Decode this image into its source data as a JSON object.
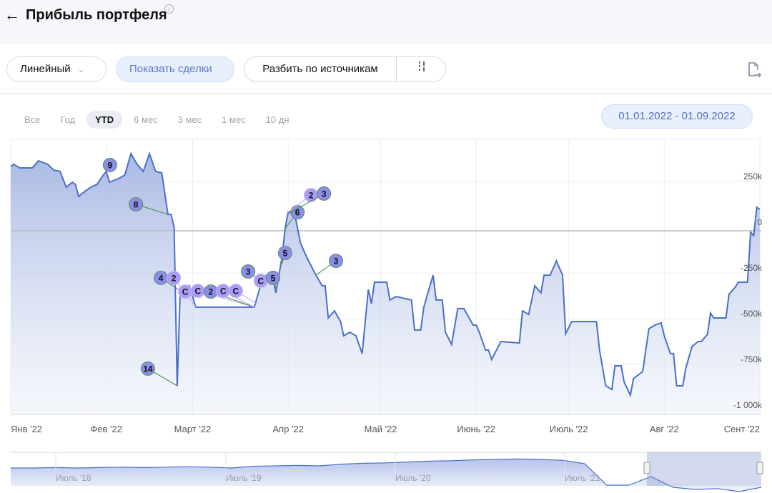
{
  "header": {
    "title": "Прибыль портфеля",
    "back_icon": "arrow-left-icon",
    "info_icon": "info-icon",
    "info_glyph": "i"
  },
  "toolbar": {
    "chart_type": "Линейный",
    "show_trades": "Показать сделки",
    "split_by_sources": "Разбить по источникам",
    "settings_glyph": "¦!"
  },
  "ranges": [
    {
      "label": "Все"
    },
    {
      "label": "Год"
    },
    {
      "label": "YTD",
      "selected": true
    },
    {
      "label": "6 мес"
    },
    {
      "label": "3 мес"
    },
    {
      "label": "1 мес"
    },
    {
      "label": "10 дн"
    }
  ],
  "date_range": "01.01.2022 - 01.09.2022",
  "colors": {
    "line": "#4a6fc9",
    "fill": "#b7c5e8",
    "buy": "#8b8ee6",
    "buy_border": "#5c8f5a",
    "sell": "#ab9df6",
    "sell_border": "#c5b8fb",
    "zero": "#b8bbc2"
  },
  "chart_data": {
    "type": "area",
    "title": "Прибыль портфеля",
    "x_unit": "days since 01.01.2022",
    "y_unit": "thousand RUB",
    "xlim": [
      0,
      243
    ],
    "ylim": [
      -1000,
      300
    ],
    "grid": true,
    "x_ticks": [
      {
        "day": 0,
        "label": "Янв '22"
      },
      {
        "day": 31,
        "label": "Фев '22"
      },
      {
        "day": 59,
        "label": "Март '22"
      },
      {
        "day": 90,
        "label": "Апр '22"
      },
      {
        "day": 120,
        "label": "Май '22"
      },
      {
        "day": 151,
        "label": "Июнь '22"
      },
      {
        "day": 181,
        "label": "Июль '22"
      },
      {
        "day": 212,
        "label": "Авг '22"
      },
      {
        "day": 243,
        "label": "Сент '22"
      }
    ],
    "y_ticks": [
      {
        "value": 250,
        "label": "250k"
      },
      {
        "value": 0,
        "label": "0"
      },
      {
        "value": -250,
        "label": "-250k"
      },
      {
        "value": -500,
        "label": "-500k"
      },
      {
        "value": -750,
        "label": "-750k"
      },
      {
        "value": -1000,
        "label": "-1 000k"
      }
    ],
    "series": [
      [
        0,
        332
      ],
      [
        1,
        344
      ],
      [
        3,
        324
      ],
      [
        7,
        324
      ],
      [
        9,
        363
      ],
      [
        12,
        344
      ],
      [
        14,
        312
      ],
      [
        16,
        305
      ],
      [
        18,
        219
      ],
      [
        20,
        246
      ],
      [
        21,
        234
      ],
      [
        22,
        168
      ],
      [
        24,
        195
      ],
      [
        26,
        219
      ],
      [
        28,
        234
      ],
      [
        30,
        285
      ],
      [
        31,
        305
      ],
      [
        32,
        246
      ],
      [
        35,
        266
      ],
      [
        37,
        285
      ],
      [
        39,
        402
      ],
      [
        41,
        344
      ],
      [
        43,
        305
      ],
      [
        45,
        402
      ],
      [
        47,
        305
      ],
      [
        49,
        297
      ],
      [
        51,
        70
      ],
      [
        52,
        70
      ],
      [
        53,
        0
      ],
      [
        54,
        -867
      ],
      [
        55,
        -340
      ],
      [
        56,
        -359
      ],
      [
        58,
        -320
      ],
      [
        60,
        -437
      ],
      [
        79,
        -437
      ],
      [
        80,
        -379
      ],
      [
        82,
        -262
      ],
      [
        85,
        -273
      ],
      [
        86,
        -359
      ],
      [
        88,
        -164
      ],
      [
        89,
        -8
      ],
      [
        90,
        82
      ],
      [
        92,
        82
      ],
      [
        94,
        -86
      ],
      [
        96,
        -164
      ],
      [
        99,
        -262
      ],
      [
        101,
        -320
      ],
      [
        102,
        -320
      ],
      [
        103,
        -496
      ],
      [
        105,
        -457
      ],
      [
        107,
        -516
      ],
      [
        108,
        -594
      ],
      [
        110,
        -574
      ],
      [
        112,
        -594
      ],
      [
        114,
        -691
      ],
      [
        116,
        -340
      ],
      [
        117,
        -418
      ],
      [
        118,
        -301
      ],
      [
        122,
        -301
      ],
      [
        123,
        -398
      ],
      [
        125,
        -379
      ],
      [
        130,
        -398
      ],
      [
        131,
        -562
      ],
      [
        133,
        -562
      ],
      [
        134,
        -437
      ],
      [
        137,
        -262
      ],
      [
        138,
        -398
      ],
      [
        140,
        -398
      ],
      [
        141,
        -574
      ],
      [
        143,
        -641
      ],
      [
        145,
        -445
      ],
      [
        147,
        -445
      ],
      [
        150,
        -535
      ],
      [
        151,
        -535
      ],
      [
        152,
        -574
      ],
      [
        154,
        -672
      ],
      [
        155,
        -672
      ],
      [
        156,
        -723
      ],
      [
        159,
        -625
      ],
      [
        165,
        -633
      ],
      [
        166,
        -457
      ],
      [
        168,
        -477
      ],
      [
        170,
        -320
      ],
      [
        172,
        -359
      ],
      [
        173,
        -262
      ],
      [
        175,
        -262
      ],
      [
        177,
        -184
      ],
      [
        179,
        -262
      ],
      [
        180,
        -582
      ],
      [
        182,
        -516
      ],
      [
        190,
        -516
      ],
      [
        191,
        -672
      ],
      [
        193,
        -867
      ],
      [
        195,
        -887
      ],
      [
        196,
        -758
      ],
      [
        198,
        -758
      ],
      [
        199,
        -848
      ],
      [
        201,
        -918
      ],
      [
        202,
        -828
      ],
      [
        205,
        -789
      ],
      [
        207,
        -555
      ],
      [
        209,
        -535
      ],
      [
        211,
        -523
      ],
      [
        212,
        -594
      ],
      [
        214,
        -691
      ],
      [
        215,
        -691
      ],
      [
        216,
        -867
      ],
      [
        218,
        -867
      ],
      [
        219,
        -770
      ],
      [
        221,
        -652
      ],
      [
        223,
        -625
      ],
      [
        224,
        -625
      ],
      [
        226,
        -586
      ],
      [
        227,
        -469
      ],
      [
        228,
        -496
      ],
      [
        232,
        -496
      ],
      [
        233,
        -367
      ],
      [
        235,
        -328
      ],
      [
        236,
        -301
      ],
      [
        239,
        -301
      ],
      [
        240,
        -27
      ],
      [
        241,
        -47
      ],
      [
        242,
        109
      ],
      [
        243,
        98
      ]
    ],
    "markers": [
      {
        "label": "9",
        "kind": "buy",
        "day": 32.2,
        "value": 340,
        "ad": 32,
        "av": 300
      },
      {
        "label": "8",
        "kind": "buy",
        "day": 40.6,
        "value": 125,
        "ad": 51,
        "av": 70
      },
      {
        "label": "14",
        "kind": "buy",
        "day": 44.5,
        "value": -773,
        "ad": 54,
        "av": -867
      },
      {
        "label": "4",
        "kind": "buy",
        "day": 48.7,
        "value": -277,
        "ad": 56,
        "av": -359
      },
      {
        "label": "2",
        "kind": "sell",
        "day": 52.9,
        "value": -277,
        "ad": 58,
        "av": -390
      },
      {
        "label": "C",
        "kind": "sell",
        "day": 56.6,
        "value": -352,
        "ad": 60,
        "av": -437
      },
      {
        "label": "C",
        "kind": "sell",
        "day": 60.7,
        "value": -348,
        "ad": 79,
        "av": -437
      },
      {
        "label": "2",
        "kind": "buy",
        "day": 64.9,
        "value": -352,
        "ad": 79,
        "av": -437
      },
      {
        "label": "C",
        "kind": "sell",
        "day": 68.9,
        "value": -348,
        "ad": 79,
        "av": -437
      },
      {
        "label": "C",
        "kind": "sell",
        "day": 73.0,
        "value": -348,
        "ad": 80,
        "av": -420
      },
      {
        "label": "3",
        "kind": "buy",
        "day": 77.0,
        "value": -242,
        "ad": 82,
        "av": -300
      },
      {
        "label": "C",
        "kind": "sell",
        "day": 81.1,
        "value": -293,
        "ad": 82,
        "av": -320
      },
      {
        "label": "5",
        "kind": "buy",
        "day": 85.1,
        "value": -277,
        "ad": 86,
        "av": -330
      },
      {
        "label": "5",
        "kind": "buy",
        "day": 89.0,
        "value": -141,
        "ad": 88,
        "av": -200
      },
      {
        "label": "6",
        "kind": "buy",
        "day": 93.0,
        "value": 82,
        "ad": 89,
        "av": -8
      },
      {
        "label": "2",
        "kind": "sell",
        "day": 97.4,
        "value": 176,
        "ad": 90,
        "av": 82
      },
      {
        "label": "3",
        "kind": "buy",
        "day": 101.6,
        "value": 184,
        "ad": 91,
        "av": 82
      },
      {
        "label": "3",
        "kind": "buy",
        "day": 105.5,
        "value": -184,
        "ad": 99,
        "av": -262
      }
    ],
    "navigator": {
      "labels": [
        "Июль '18",
        "Июль '19",
        "Июль '20",
        "Июль '21"
      ],
      "values": [
        0,
        0,
        1,
        0,
        1,
        2,
        1,
        2,
        3,
        2,
        0,
        4,
        5,
        6,
        5,
        9,
        11,
        12,
        14,
        16,
        17,
        19,
        20,
        21,
        20,
        18,
        10,
        -40,
        -40,
        -20,
        -45,
        -50,
        -48,
        -55,
        -45
      ]
    }
  }
}
